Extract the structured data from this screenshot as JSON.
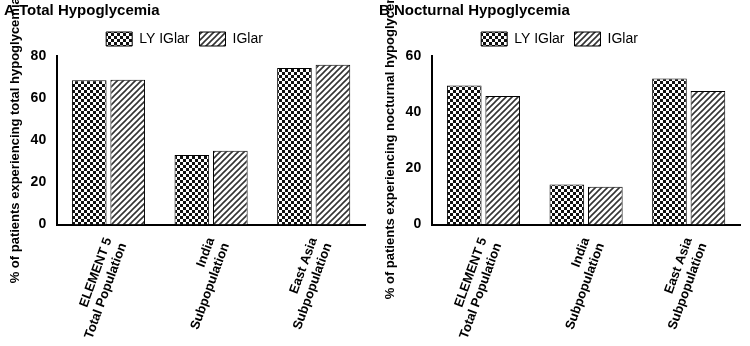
{
  "chart_data": [
    {
      "type": "bar",
      "title": "A Total Hypoglycemia",
      "y_label": "% of patients experiencing total hypoglycemia",
      "categories": [
        "ELEMENT 5\nTotal Population",
        "India\nSubpopulation",
        "East Asia\nSubpopulation"
      ],
      "series": [
        {
          "name": "LY IGlar",
          "color": "#111111",
          "values": [
            68.5,
            33.0,
            74.3
          ]
        },
        {
          "name": "IGlar",
          "color": "#333333",
          "values": [
            68.7,
            35.0,
            75.9
          ]
        }
      ],
      "ylim": [
        0,
        80
      ],
      "yticks": [
        0,
        20,
        40,
        60,
        80
      ],
      "grid": false,
      "legend": "top"
    },
    {
      "type": "bar",
      "title": "B Nocturnal Hypoglycemia",
      "y_label": "% of patients experiencing nocturnal hypoglycemia",
      "categories": [
        "ELEMENT 5\nTotal Population",
        "India\nSubpopulation",
        "East Asia\nSubpopulation"
      ],
      "series": [
        {
          "name": "LY IGlar",
          "color": "#111111",
          "values": [
            49.5,
            14.3,
            52.0
          ]
        },
        {
          "name": "IGlar",
          "color": "#333333",
          "values": [
            45.8,
            13.5,
            47.5
          ]
        }
      ],
      "ylim": [
        0,
        60
      ],
      "yticks": [
        0,
        20,
        40,
        60
      ],
      "grid": false,
      "legend": "top"
    }
  ]
}
